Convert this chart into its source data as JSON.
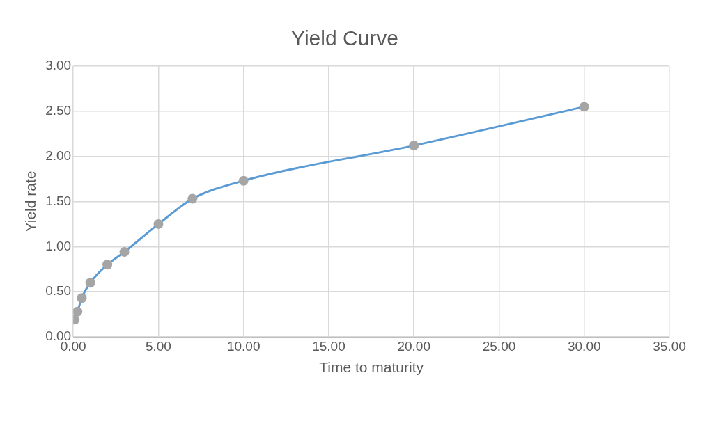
{
  "chart_data": {
    "type": "line",
    "title": "Yield Curve",
    "xlabel": "Time to maturity",
    "ylabel": "Yield rate",
    "x": [
      0.08,
      0.25,
      0.5,
      1,
      2,
      3,
      5,
      7,
      10,
      20,
      30
    ],
    "series": [
      {
        "type": "line",
        "color": "#5b9bd5",
        "marker": "none",
        "values": [
          0.19,
          0.28,
          0.43,
          0.6,
          0.8,
          0.94,
          1.25,
          1.53,
          1.73,
          2.12,
          2.55
        ]
      },
      {
        "type": "scatter",
        "color": "#a5a5a5",
        "marker": "circle",
        "values": [
          0.19,
          0.28,
          0.43,
          0.6,
          0.8,
          0.94,
          1.25,
          1.53,
          1.73,
          2.12,
          2.55
        ]
      }
    ],
    "xlim": [
      0,
      35
    ],
    "xticks": [
      {
        "value": 0,
        "label": "0.00"
      },
      {
        "value": 5,
        "label": "5.00"
      },
      {
        "value": 10,
        "label": "10.00"
      },
      {
        "value": 15,
        "label": "15.00"
      },
      {
        "value": 20,
        "label": "20.00"
      },
      {
        "value": 25,
        "label": "25.00"
      },
      {
        "value": 30,
        "label": "30.00"
      },
      {
        "value": 35,
        "label": "35.00"
      }
    ],
    "ylim": [
      0,
      3
    ],
    "yticks": [
      {
        "value": 0,
        "label": "0.00"
      },
      {
        "value": 0.5,
        "label": "0.50"
      },
      {
        "value": 1,
        "label": "1.00"
      },
      {
        "value": 1.5,
        "label": "1.50"
      },
      {
        "value": 2,
        "label": "2.00"
      },
      {
        "value": 2.5,
        "label": "2.50"
      },
      {
        "value": 3,
        "label": "3.00"
      }
    ],
    "grid": true,
    "legend": false
  }
}
